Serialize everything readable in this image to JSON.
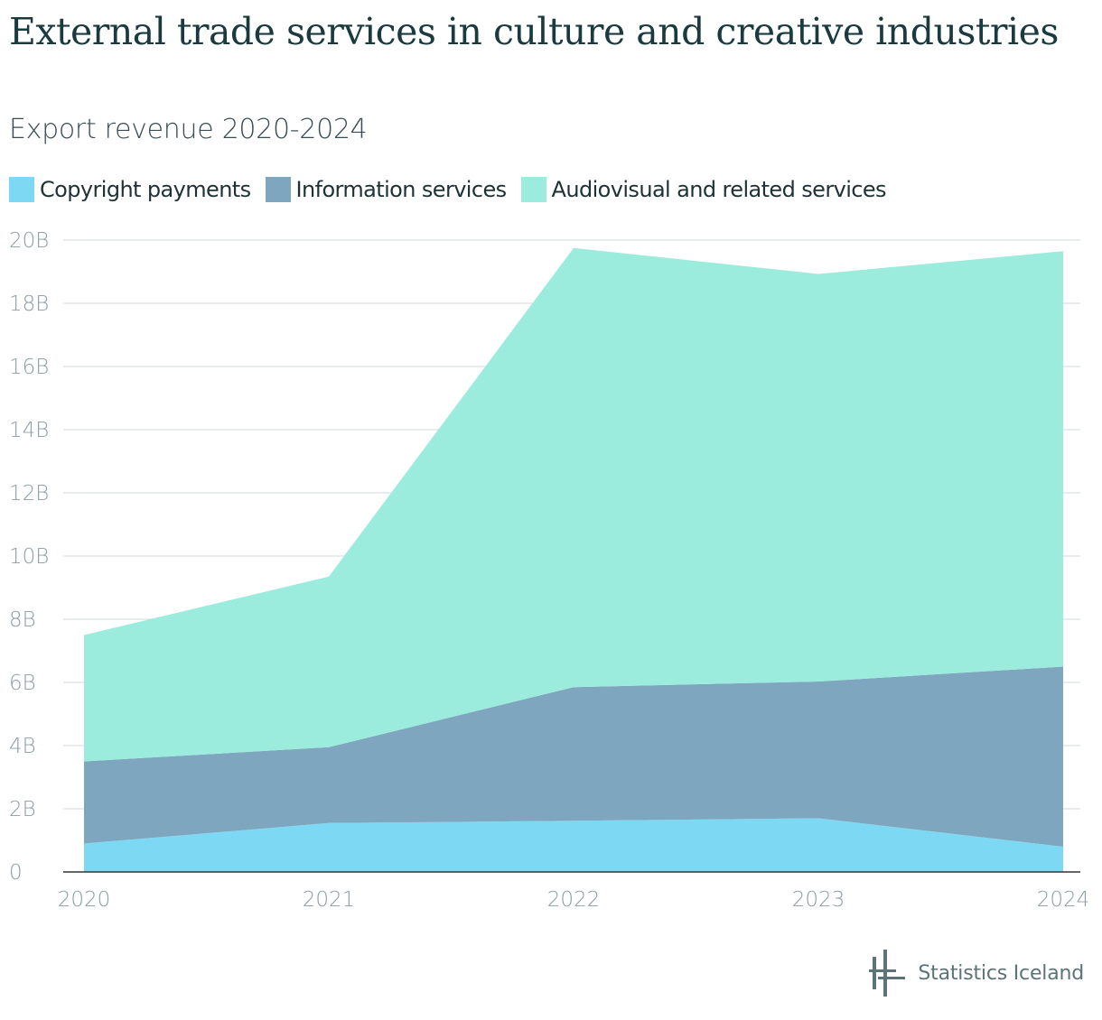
{
  "title": "External trade services in culture and creative industries",
  "subtitle": "Export revenue 2020-2024",
  "footer": {
    "logo_text": "Statistics Iceland"
  },
  "colors": {
    "copyright": "#7dd8f3",
    "information": "#7fa6bf",
    "audiovisual": "#9cecdd",
    "grid": "#e2e5e6",
    "axis": "#333333"
  },
  "legend": [
    {
      "label": "Copyright payments",
      "color": "#7dd8f3"
    },
    {
      "label": "Information services",
      "color": "#7fa6bf"
    },
    {
      "label": "Audiovisual and related services",
      "color": "#9cecdd"
    }
  ],
  "chart_data": {
    "type": "area",
    "stacked": true,
    "title": "External trade services in culture and creative industries",
    "subtitle": "Export revenue 2020-2024",
    "x": [
      "2020",
      "2021",
      "2022",
      "2023",
      "2024"
    ],
    "series": [
      {
        "name": "Copyright payments",
        "values": [
          0.9,
          1.55,
          1.62,
          1.7,
          0.8
        ]
      },
      {
        "name": "Information services",
        "values": [
          2.6,
          2.4,
          4.23,
          4.33,
          5.7
        ]
      },
      {
        "name": "Audiovisual and related services",
        "values": [
          4.0,
          5.4,
          13.9,
          12.9,
          13.15
        ]
      }
    ],
    "ylim": [
      0,
      20
    ],
    "yticks": [
      "0",
      "2B",
      "4B",
      "6B",
      "8B",
      "10B",
      "12B",
      "14B",
      "16B",
      "18B",
      "20B"
    ],
    "grid": true,
    "legend_position": "top-left"
  }
}
